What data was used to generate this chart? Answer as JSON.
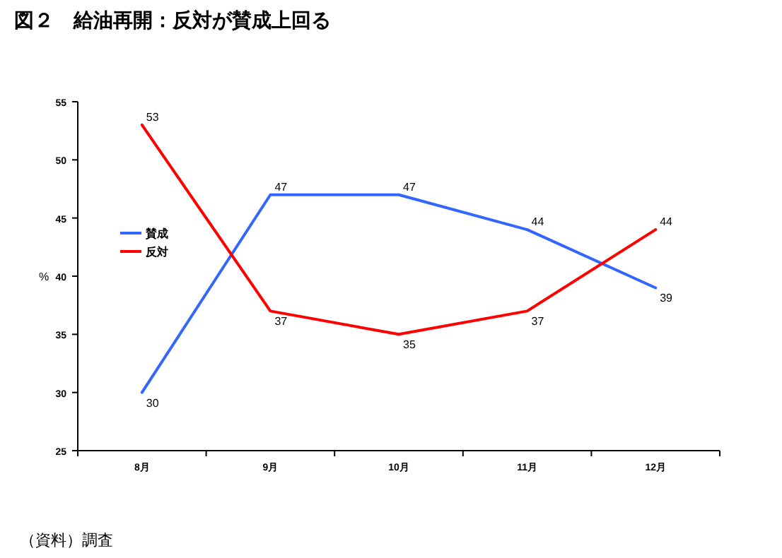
{
  "chart_data": {
    "type": "line",
    "title": "図２　給油再開：反対が賛成上回る",
    "ylabel": "%",
    "categories": [
      "8月",
      "9月",
      "10月",
      "11月",
      "12月"
    ],
    "series": [
      {
        "name": "賛成",
        "color": "#3366ff",
        "values": [
          30,
          47,
          47,
          44,
          39
        ]
      },
      {
        "name": "反対",
        "color": "#ff0000",
        "values": [
          53,
          37,
          35,
          37,
          44
        ]
      }
    ],
    "ylim": [
      25,
      55
    ],
    "yticks": [
      25,
      30,
      35,
      40,
      45,
      50,
      55
    ],
    "data_labels": true,
    "legend": "left",
    "grid": false,
    "marker": "none",
    "line_style": "solid",
    "annotations": [
      "（資料）調査"
    ]
  }
}
